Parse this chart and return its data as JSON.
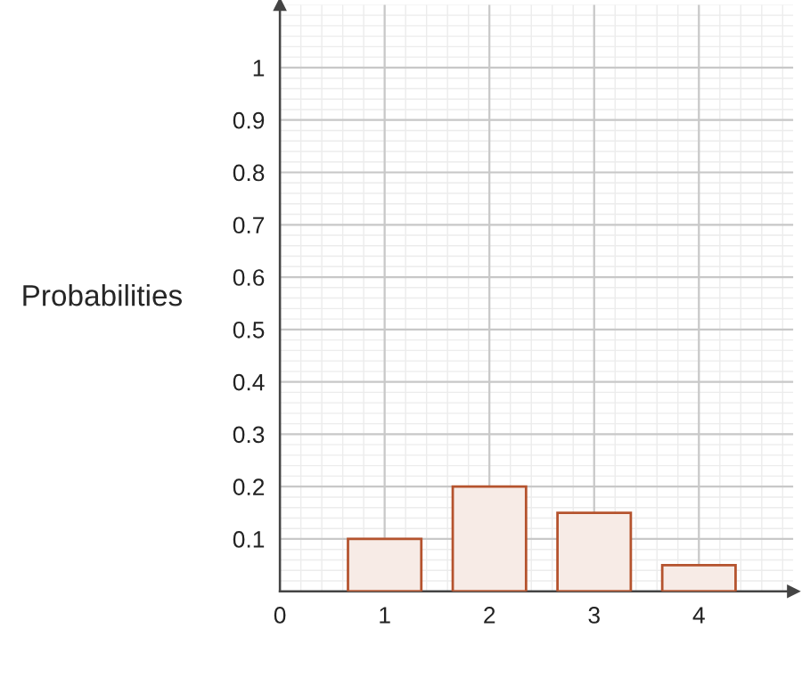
{
  "chart_data": {
    "type": "bar",
    "ylabel": "Probabilities",
    "x": [
      1,
      2,
      3,
      4
    ],
    "values": [
      0.1,
      0.2,
      0.15,
      0.05
    ],
    "color": "#f7ebe6",
    "xlim": [
      0,
      4.9
    ],
    "ylim": [
      0,
      1.12
    ],
    "xticks": [
      0,
      1,
      2,
      3,
      4
    ],
    "yticks": [
      0.1,
      0.2,
      0.3,
      0.4,
      0.5,
      0.6,
      0.7,
      0.8,
      0.9,
      1
    ],
    "grid": true
  }
}
